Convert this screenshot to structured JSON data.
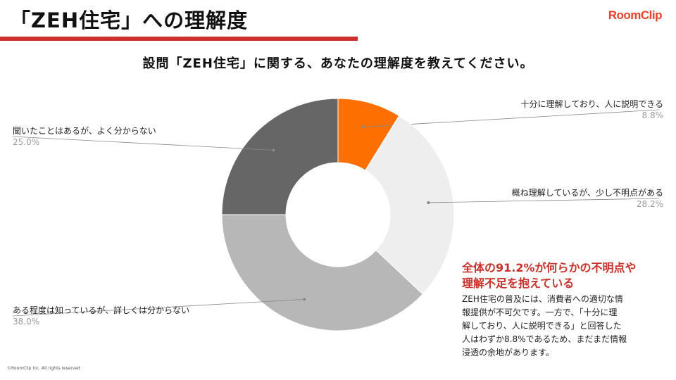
{
  "slide": {
    "title": "「ZEH住宅」への理解度",
    "question": "設問「ZEH住宅」に関する、あなたの理解度を教えてください。",
    "logo": "RoomClip",
    "copyright": "©RoomClip Inc. All rights reserved"
  },
  "chart_data": {
    "type": "pie",
    "donut": true,
    "segments": [
      {
        "label": "十分に理解しており、人に説明できる",
        "value": 8.8,
        "display": "8.8%",
        "color": "#fd6f01"
      },
      {
        "label": "概ね理解しているが、少し不明点がある",
        "value": 28.2,
        "display": "28.2%",
        "color": "#eeeeee"
      },
      {
        "label": "ある程度は知っているが、詳しくは分からない",
        "value": 38.0,
        "display": "38.0%",
        "color": "#b7b7b7"
      },
      {
        "label": "聞いたことはあるが、よく分からない",
        "value": 25.0,
        "display": "25.0%",
        "color": "#666666"
      }
    ]
  },
  "callout": {
    "headline": "全体の91.2%が何らかの不明点や\n理解不足を抱えている",
    "body": "ZEH住宅の普及には、消費者への適切な情\n報提供が不可欠です。一方で、「十分に理\n解しており、人に説明できる」と回答した\n人はわずか8.8%であるため、まだまだ情報\n浸透の余地があります。"
  }
}
